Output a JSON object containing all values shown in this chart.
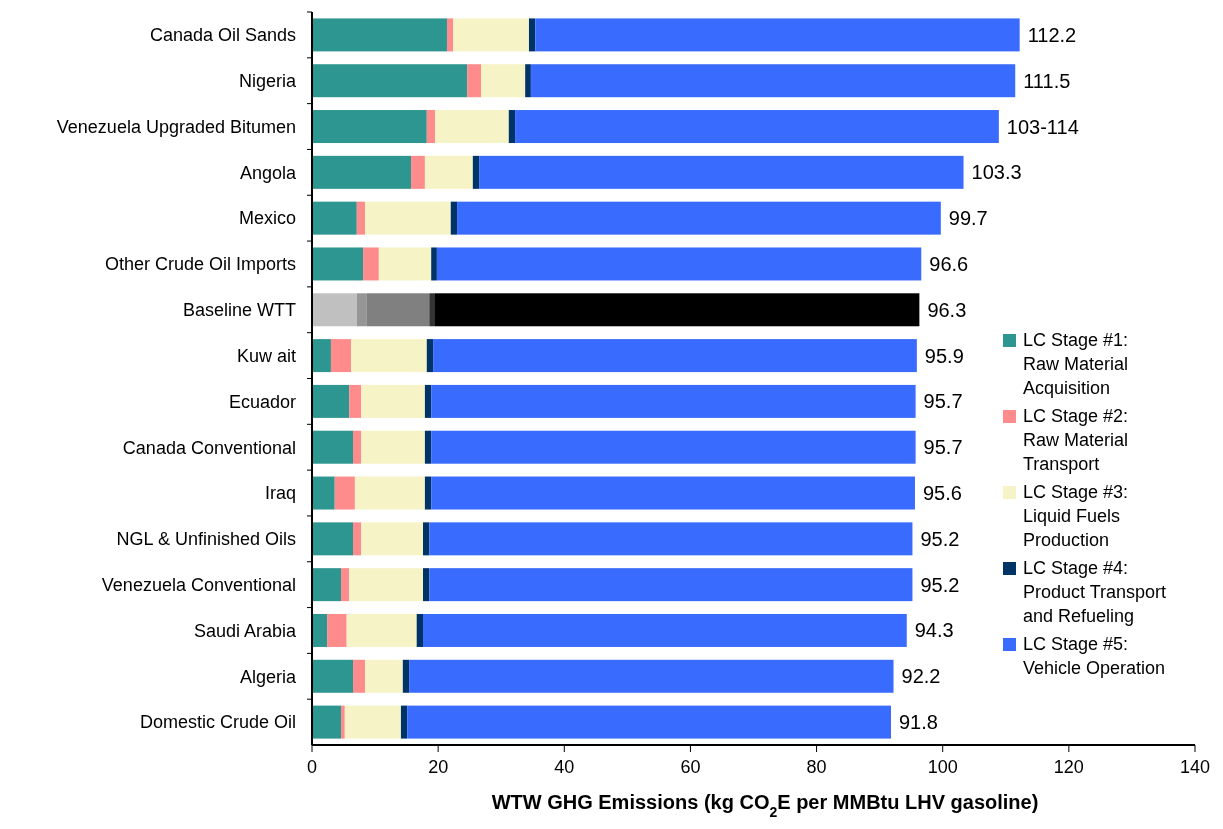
{
  "chart_data": {
    "type": "bar",
    "orientation": "horizontal",
    "stacked": true,
    "xlabel": "WTW GHG Emissions (kg CO$_{2}$E per MMBtu LHV gasoline)",
    "categories": [
      "Canada Oil Sands",
      "Nigeria",
      "Venezuela Upgraded Bitumen",
      "Angola",
      "Mexico",
      "Other Crude Oil Imports",
      "Baseline WTT",
      "Kuw ait",
      "Ecuador",
      "Canada Conventional",
      "Iraq",
      "NGL & Unfinished Oils",
      "Venezuela Conventional",
      "Saudi Arabia",
      "Algeria",
      "Domestic Crude Oil"
    ],
    "series": [
      {
        "name": "LC Stage #1: Raw Material Acquisition",
        "color": "#2e9690",
        "colors": [
          "#2e9690",
          "#2e9690",
          "#2e9690",
          "#2e9690",
          "#2e9690",
          "#2e9690",
          "#c0c0c0",
          "#2e9690",
          "#2e9690",
          "#2e9690",
          "#2e9690",
          "#2e9690",
          "#2e9690",
          "#2e9690",
          "#2e9690",
          "#2e9690"
        ],
        "values": [
          21.4,
          24.6,
          18.2,
          15.7,
          7.1,
          8.1,
          7.1,
          3.0,
          5.9,
          6.5,
          3.6,
          6.5,
          4.6,
          2.4,
          6.5,
          4.6
        ]
      },
      {
        "name": "LC Stage #2: Raw Material Transport",
        "color": "#ff8c8c",
        "colors": [
          "#ff8c8c",
          "#ff8c8c",
          "#ff8c8c",
          "#ff8c8c",
          "#ff8c8c",
          "#ff8c8c",
          "#969696",
          "#ff8c8c",
          "#ff8c8c",
          "#ff8c8c",
          "#ff8c8c",
          "#ff8c8c",
          "#ff8c8c",
          "#ff8c8c",
          "#ff8c8c",
          "#ff8c8c"
        ],
        "values": [
          1.0,
          2.2,
          1.3,
          2.2,
          1.3,
          2.5,
          1.6,
          3.2,
          1.9,
          1.3,
          3.2,
          1.3,
          1.3,
          3.1,
          1.9,
          0.6
        ]
      },
      {
        "name": "LC Stage #3: Liquid Fuels Production",
        "color": "#f6f4c6",
        "colors": [
          "#f6f4c6",
          "#f6f4c6",
          "#f6f4c6",
          "#f6f4c6",
          "#f6f4c6",
          "#f6f4c6",
          "#808080",
          "#f6f4c6",
          "#f6f4c6",
          "#f6f4c6",
          "#f6f4c6",
          "#f6f4c6",
          "#f6f4c6",
          "#f6f4c6",
          "#f6f4c6",
          "#f6f4c6"
        ],
        "values": [
          12.0,
          7.0,
          11.7,
          7.6,
          13.6,
          8.3,
          9.9,
          12.0,
          10.1,
          10.1,
          11.1,
          9.8,
          11.7,
          11.1,
          6.0,
          8.9
        ]
      },
      {
        "name": "LC Stage #4: Product Transport and Refueling",
        "color": "#003366",
        "colors": [
          "#003366",
          "#003366",
          "#003366",
          "#003366",
          "#003366",
          "#003366",
          "#333333",
          "#003366",
          "#003366",
          "#003366",
          "#003366",
          "#003366",
          "#003366",
          "#003366",
          "#003366",
          "#003366"
        ],
        "values": [
          1.0,
          0.9,
          1.0,
          1.0,
          1.0,
          0.9,
          0.9,
          1.0,
          1.0,
          1.0,
          1.0,
          1.0,
          1.0,
          1.0,
          1.0,
          1.0
        ]
      },
      {
        "name": "LC Stage #5: Vehicle Operation",
        "color": "#3a6bff",
        "colors": [
          "#3a6bff",
          "#3a6bff",
          "#3a6bff",
          "#3a6bff",
          "#3a6bff",
          "#3a6bff",
          "#000000",
          "#3a6bff",
          "#3a6bff",
          "#3a6bff",
          "#3a6bff",
          "#3a6bff",
          "#3a6bff",
          "#3a6bff",
          "#3a6bff",
          "#3a6bff"
        ],
        "values": [
          76.8,
          76.8,
          76.7,
          76.8,
          76.7,
          76.8,
          76.8,
          76.7,
          76.8,
          76.8,
          76.7,
          76.6,
          76.6,
          76.7,
          76.8,
          76.7
        ]
      }
    ],
    "totals": [
      "112.2",
      "111.5",
      "103-114",
      "103.3",
      "99.7",
      "96.6",
      "96.3",
      "95.9",
      "95.7",
      "95.7",
      "95.6",
      "95.2",
      "95.2",
      "94.3",
      "92.2",
      "91.8"
    ],
    "xlim": [
      0,
      140
    ],
    "xticks": [
      0,
      20,
      40,
      60,
      80,
      100,
      120,
      140
    ],
    "grid": false,
    "legend": "right"
  }
}
